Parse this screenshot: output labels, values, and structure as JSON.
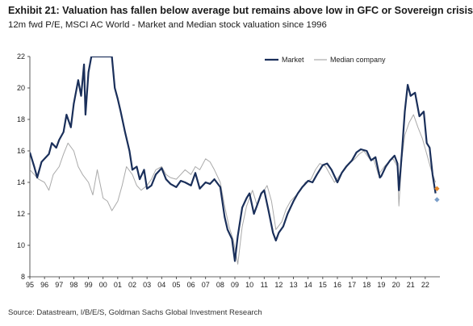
{
  "title": "Exhibit 21: Valuation has fallen below average but remains above low in GFC or Sovereign crisis",
  "subtitle": "12m fwd P/E, MSCI AC World - Market and Median stock valuation since 1996",
  "source": "Source: Datastream, I/B/E/S, Goldman Sachs Global Investment Research",
  "chart_data": {
    "type": "line",
    "title": "Exhibit 21: Valuation has fallen below average but remains above low in GFC or Sovereign crisis",
    "subtitle": "12m fwd P/E, MSCI AC World - Market and Median stock valuation since 1996",
    "xlabel": "",
    "ylabel": "",
    "xlim": [
      1995.0,
      2023.0
    ],
    "ylim": [
      8,
      22
    ],
    "y_ticks": [
      8,
      10,
      12,
      14,
      16,
      18,
      20,
      22
    ],
    "x_tick_labels": [
      "95",
      "96",
      "97",
      "98",
      "99",
      "00",
      "01",
      "02",
      "03",
      "04",
      "05",
      "06",
      "07",
      "08",
      "09",
      "10",
      "11",
      "12",
      "13",
      "14",
      "15",
      "16",
      "17",
      "18",
      "19",
      "20",
      "21",
      "22"
    ],
    "grid": false,
    "legend_position": "top-right",
    "series": [
      {
        "name": "Market",
        "color": "#1a2f5a",
        "x": [
          1995.0,
          1995.3,
          1995.5,
          1995.8,
          1996.0,
          1996.3,
          1996.5,
          1996.8,
          1997.0,
          1997.3,
          1997.5,
          1997.8,
          1998.0,
          1998.3,
          1998.5,
          1998.7,
          1998.8,
          1999.0,
          1999.2,
          1999.4,
          2000.6,
          2000.8,
          2001.0,
          2001.2,
          2001.5,
          2001.8,
          2002.0,
          2002.3,
          2002.5,
          2002.8,
          2003.0,
          2003.3,
          2003.6,
          2004.0,
          2004.3,
          2004.6,
          2005.0,
          2005.3,
          2005.6,
          2006.0,
          2006.3,
          2006.6,
          2007.0,
          2007.3,
          2007.6,
          2008.0,
          2008.3,
          2008.5,
          2008.8,
          2009.0,
          2009.2,
          2009.5,
          2009.8,
          2010.0,
          2010.3,
          2010.5,
          2010.8,
          2011.0,
          2011.3,
          2011.6,
          2011.8,
          2012.0,
          2012.3,
          2012.6,
          2013.0,
          2013.3,
          2013.6,
          2014.0,
          2014.3,
          2014.6,
          2015.0,
          2015.3,
          2015.6,
          2016.0,
          2016.3,
          2016.6,
          2017.0,
          2017.3,
          2017.6,
          2018.0,
          2018.3,
          2018.6,
          2018.9,
          2019.0,
          2019.3,
          2019.6,
          2019.9,
          2020.1,
          2020.2,
          2020.4,
          2020.6,
          2020.8,
          2021.0,
          2021.3,
          2021.6,
          2021.9,
          2022.1,
          2022.3,
          2022.5,
          2022.7
        ],
        "values": [
          15.9,
          15.0,
          14.3,
          15.3,
          15.5,
          15.8,
          16.5,
          16.2,
          16.7,
          17.2,
          18.3,
          17.5,
          19.0,
          20.5,
          19.5,
          21.5,
          18.3,
          21.0,
          22.0,
          22.0,
          22.0,
          20.0,
          19.3,
          18.5,
          17.2,
          16.0,
          14.8,
          15.0,
          14.2,
          14.8,
          13.6,
          13.8,
          14.5,
          14.9,
          14.2,
          13.9,
          13.7,
          14.1,
          14.0,
          13.8,
          14.6,
          13.6,
          14.0,
          13.9,
          14.2,
          13.7,
          11.8,
          11.0,
          10.4,
          9.0,
          10.6,
          12.4,
          13.0,
          13.3,
          12.0,
          12.5,
          13.3,
          13.5,
          12.2,
          10.8,
          10.3,
          10.8,
          11.2,
          12.0,
          12.8,
          13.3,
          13.7,
          14.1,
          14.0,
          14.5,
          15.1,
          15.2,
          14.8,
          14.0,
          14.6,
          15.0,
          15.4,
          15.9,
          16.1,
          16.0,
          15.4,
          15.6,
          14.3,
          14.4,
          15.0,
          15.4,
          15.7,
          15.2,
          13.5,
          15.8,
          18.5,
          20.2,
          19.5,
          19.7,
          18.2,
          18.5,
          16.5,
          16.2,
          14.5,
          13.3
        ]
      },
      {
        "name": "Median company",
        "color": "#aaaaaa",
        "x": [
          1995.0,
          1995.3,
          1995.6,
          1996.0,
          1996.3,
          1996.6,
          1997.0,
          1997.3,
          1997.6,
          1998.0,
          1998.3,
          1998.6,
          1999.0,
          1999.3,
          1999.6,
          2000.0,
          2000.3,
          2000.6,
          2001.0,
          2001.3,
          2001.6,
          2002.0,
          2002.3,
          2002.6,
          2003.0,
          2003.3,
          2003.6,
          2004.0,
          2004.3,
          2004.6,
          2005.0,
          2005.3,
          2005.6,
          2006.0,
          2006.3,
          2006.6,
          2007.0,
          2007.3,
          2007.6,
          2008.0,
          2008.3,
          2008.6,
          2008.9,
          2009.2,
          2009.5,
          2009.8,
          2010.2,
          2010.5,
          2010.8,
          2011.2,
          2011.5,
          2011.8,
          2012.2,
          2012.5,
          2012.8,
          2013.2,
          2013.5,
          2013.8,
          2014.2,
          2014.5,
          2014.8,
          2015.2,
          2015.5,
          2015.8,
          2016.2,
          2016.5,
          2016.8,
          2017.2,
          2017.5,
          2017.8,
          2018.2,
          2018.5,
          2018.8,
          2019.2,
          2019.5,
          2019.8,
          2020.1,
          2020.2,
          2020.4,
          2020.6,
          2020.9,
          2021.2,
          2021.5,
          2021.8,
          2022.1,
          2022.4,
          2022.7
        ],
        "values": [
          14.8,
          14.5,
          14.2,
          14.0,
          13.5,
          14.5,
          15.0,
          15.8,
          16.5,
          16.0,
          15.0,
          14.5,
          14.0,
          13.2,
          14.8,
          13.0,
          12.8,
          12.2,
          12.8,
          13.8,
          15.0,
          14.5,
          13.8,
          13.5,
          13.8,
          14.2,
          14.8,
          15.0,
          14.5,
          14.3,
          14.2,
          14.5,
          14.8,
          14.5,
          15.0,
          14.8,
          15.5,
          15.3,
          14.8,
          14.0,
          12.5,
          11.2,
          10.3,
          8.8,
          11.2,
          12.5,
          13.5,
          12.6,
          13.2,
          13.8,
          12.8,
          11.0,
          11.5,
          12.3,
          12.8,
          13.2,
          13.5,
          14.0,
          14.2,
          14.8,
          15.2,
          15.0,
          14.5,
          14.0,
          14.5,
          14.8,
          15.2,
          15.5,
          15.8,
          16.0,
          15.5,
          15.4,
          14.5,
          15.0,
          15.3,
          15.5,
          15.0,
          12.5,
          15.5,
          17.0,
          17.8,
          18.3,
          17.5,
          16.8,
          15.8,
          14.8,
          14.0
        ]
      }
    ],
    "markers": [
      {
        "x": 2022.8,
        "y": 13.6,
        "color": "#e8892a"
      },
      {
        "x": 2022.8,
        "y": 12.9,
        "color": "#7a9ec9"
      }
    ]
  }
}
